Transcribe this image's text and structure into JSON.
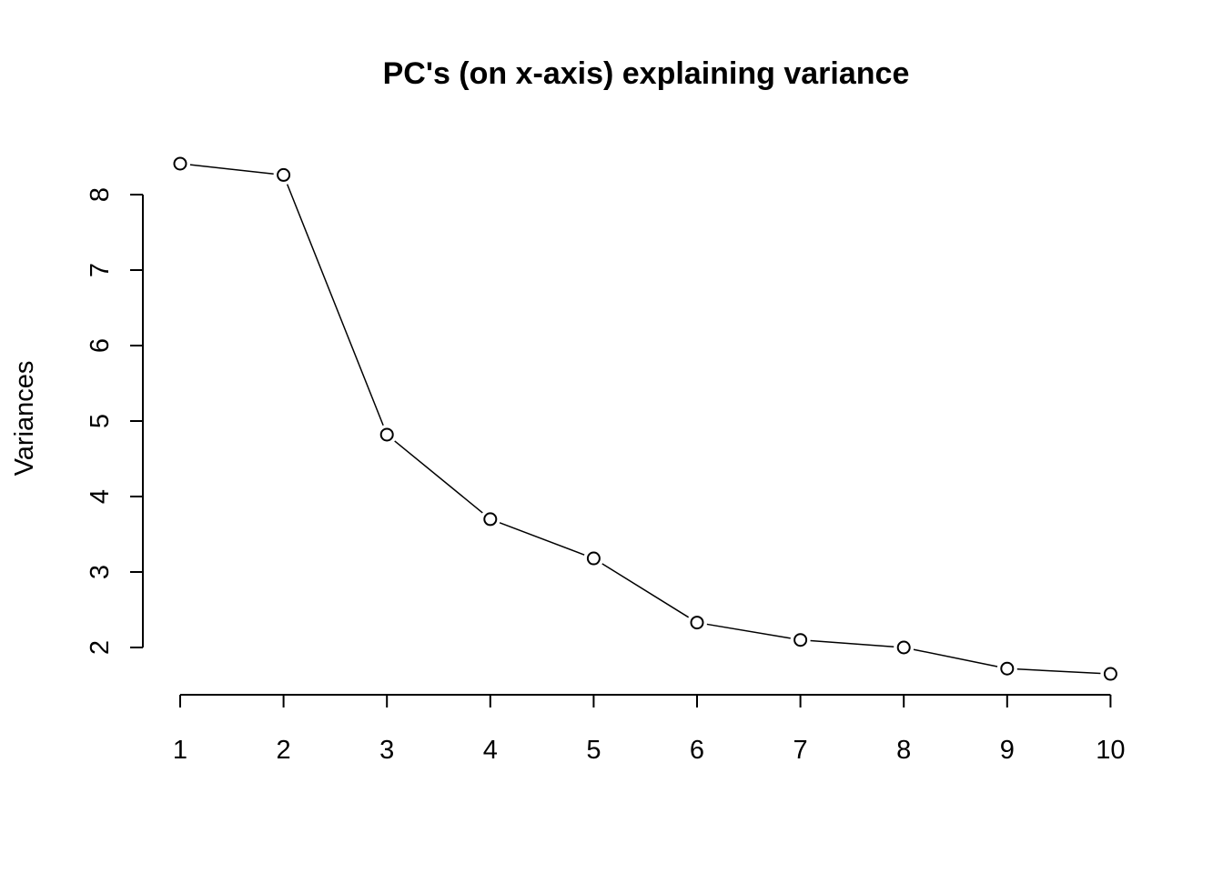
{
  "chart_data": {
    "type": "line",
    "title": "PC's (on x-axis) explaining variance",
    "xlabel": "",
    "ylabel": "Variances",
    "x": [
      1,
      2,
      3,
      4,
      5,
      6,
      7,
      8,
      9,
      10
    ],
    "values": [
      8.41,
      8.26,
      4.82,
      3.7,
      3.18,
      2.33,
      2.1,
      2.0,
      1.72,
      1.65
    ],
    "x_ticks": [
      1,
      2,
      3,
      4,
      5,
      6,
      7,
      8,
      9,
      10
    ],
    "y_ticks": [
      2,
      3,
      4,
      5,
      6,
      7,
      8
    ],
    "marker": "open-circle",
    "grid": false,
    "colors": {
      "line": "#000000",
      "text": "#000000",
      "background": "#ffffff"
    }
  }
}
